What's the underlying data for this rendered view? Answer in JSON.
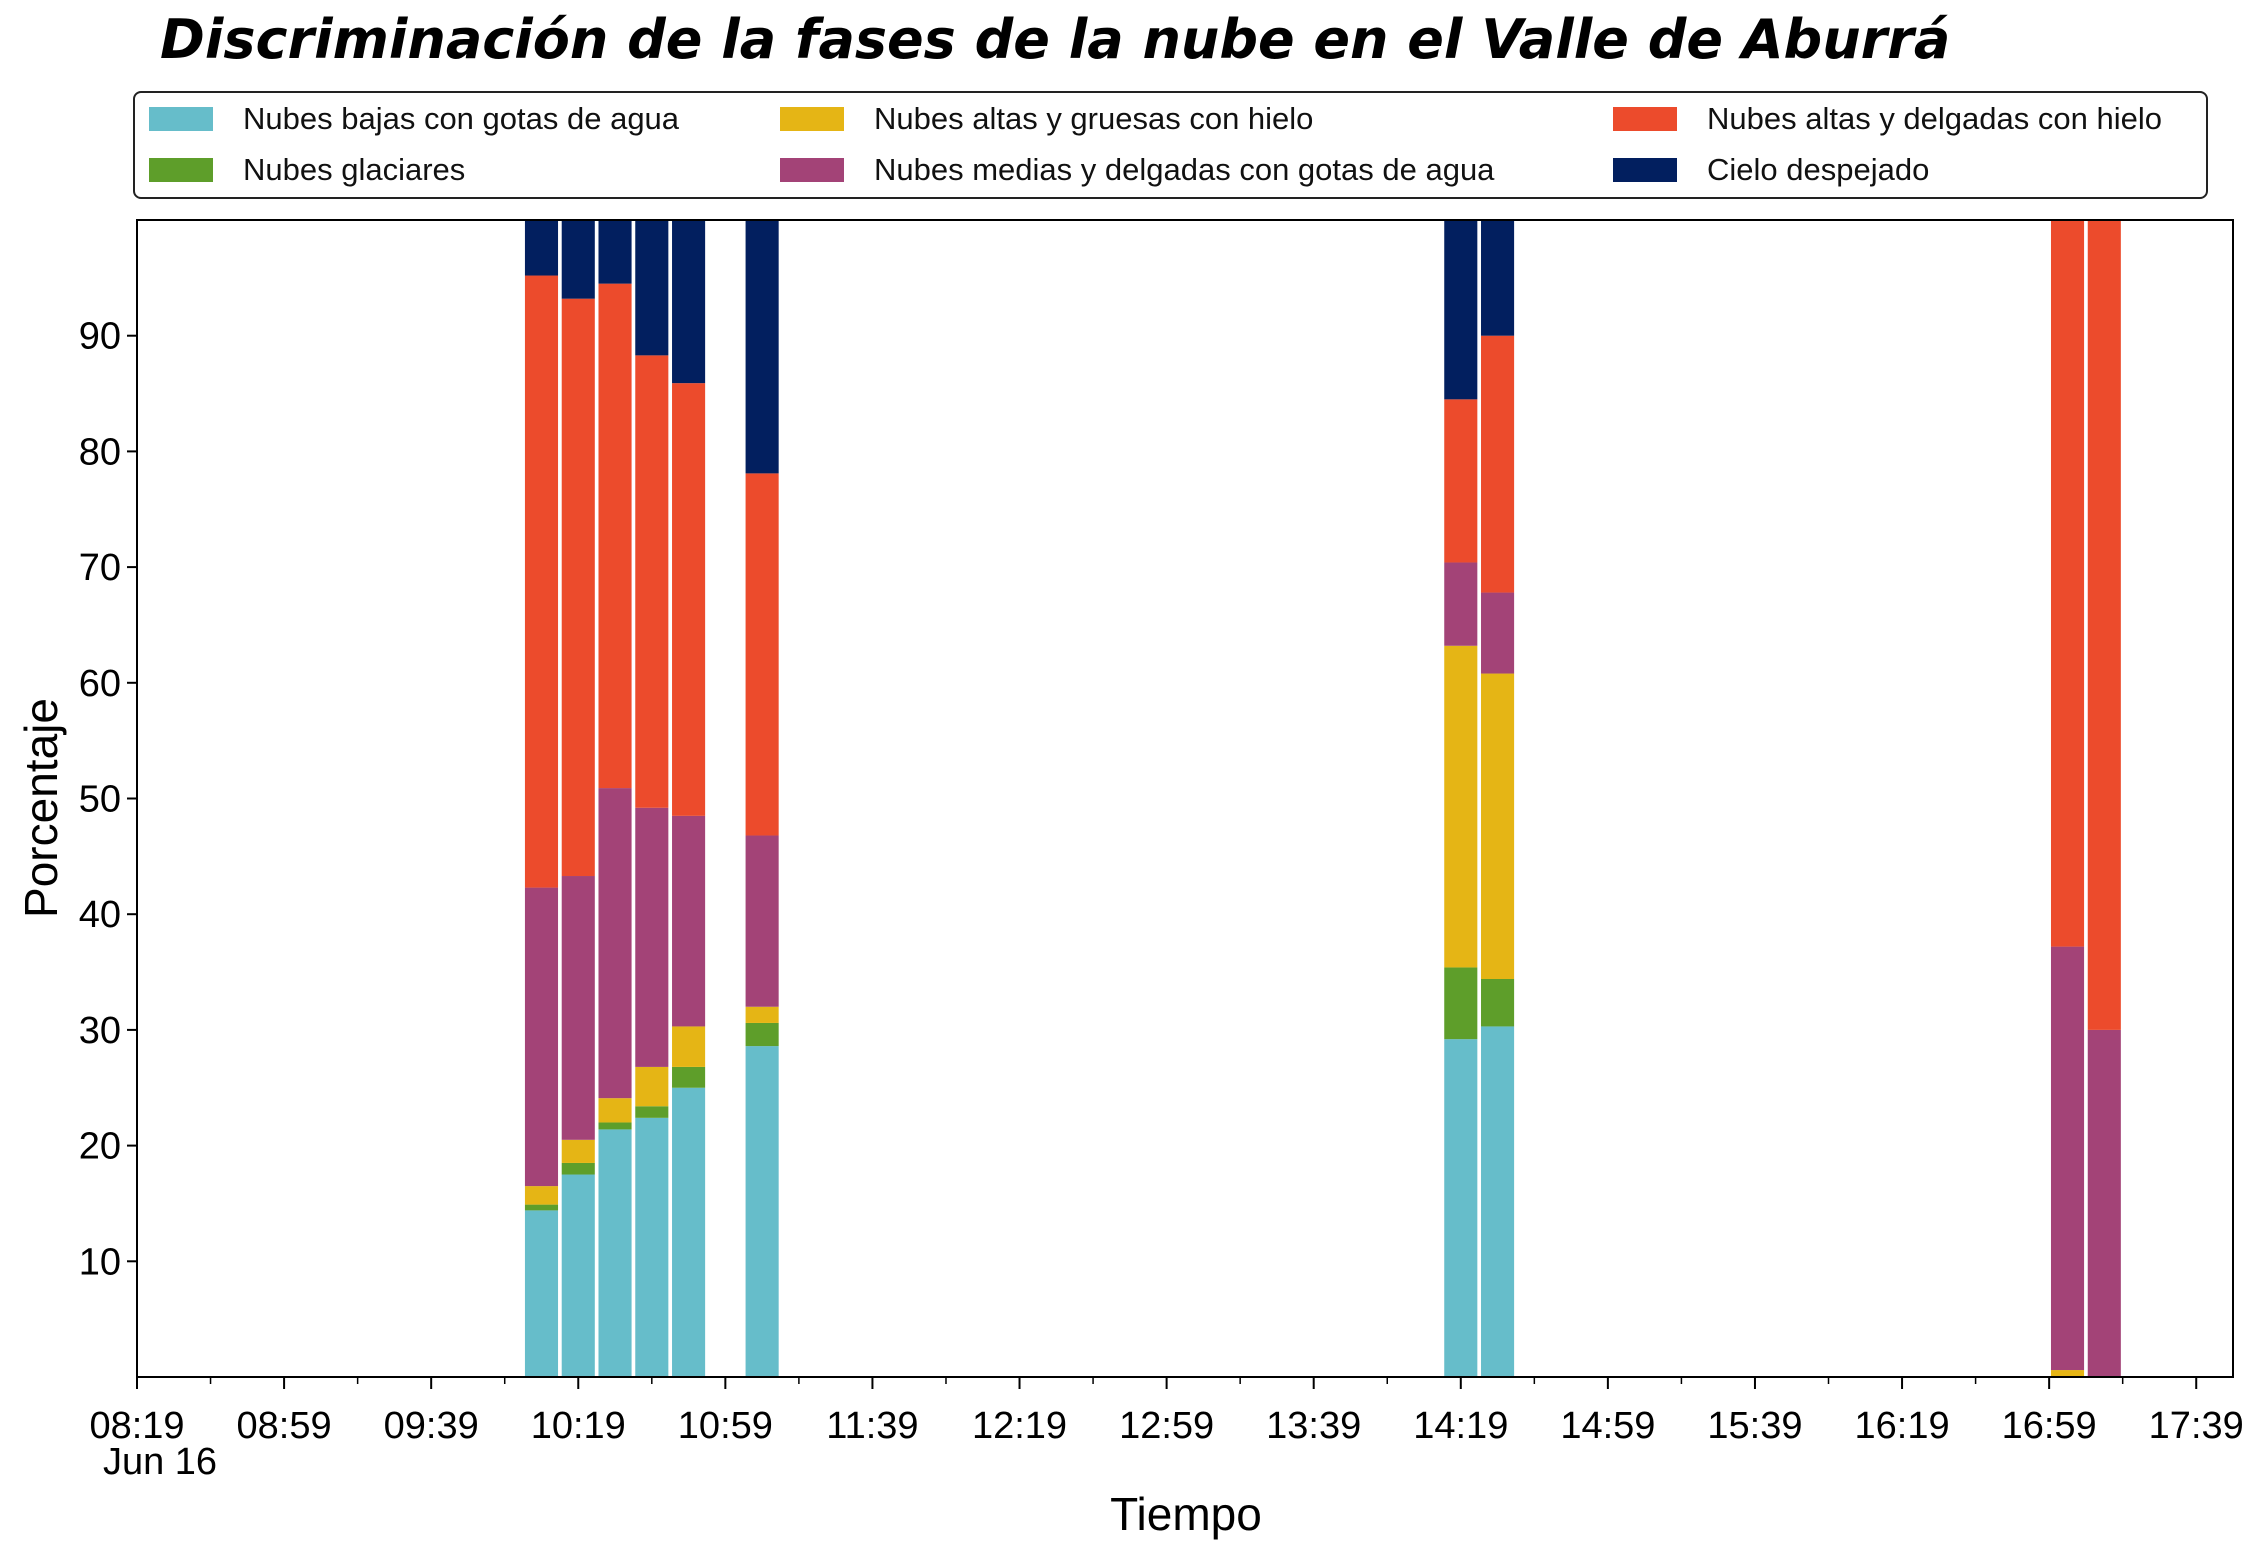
{
  "chart_data": {
    "type": "bar",
    "stacked": true,
    "title": "Discriminación de la fases de la nube en el Valle de Aburrá",
    "xlabel": "Tiempo",
    "ylabel": "Porcentaje",
    "date_label": "Jun 16",
    "ylim": [
      0,
      100
    ],
    "yticks": [
      10,
      20,
      30,
      40,
      50,
      60,
      70,
      80,
      90
    ],
    "xlim": [
      "08:19",
      "17:49"
    ],
    "xticks": [
      "08:19",
      "08:59",
      "09:39",
      "10:19",
      "10:59",
      "11:39",
      "12:19",
      "12:59",
      "13:39",
      "14:19",
      "14:59",
      "15:39",
      "16:19",
      "16:59",
      "17:39"
    ],
    "bar_width_minutes": 9,
    "legend_position": "top",
    "x": [
      "10:09",
      "10:19",
      "10:29",
      "10:39",
      "10:49",
      "11:09",
      "14:19",
      "14:29",
      "17:04",
      "17:14"
    ],
    "series": [
      {
        "name": "Nubes bajas con gotas de agua",
        "color": "#66bdca",
        "values": [
          14.4,
          17.5,
          21.4,
          22.4,
          25.0,
          28.6,
          29.2,
          30.3,
          0,
          0
        ]
      },
      {
        "name": "Nubes glaciares",
        "color": "#5e9e2a",
        "values": [
          0.5,
          1.0,
          0.6,
          1.0,
          1.8,
          2.0,
          6.2,
          4.1,
          0,
          0
        ]
      },
      {
        "name": "Nubes altas y gruesas con hielo",
        "color": "#e5b515",
        "values": [
          1.6,
          2.0,
          2.1,
          3.4,
          3.5,
          1.4,
          27.8,
          26.4,
          0.6,
          0
        ]
      },
      {
        "name": "Nubes medias y delgadas con gotas de agua",
        "color": "#a34377",
        "values": [
          25.8,
          22.8,
          26.8,
          22.4,
          18.2,
          14.8,
          7.2,
          7.0,
          36.6,
          30.0
        ]
      },
      {
        "name": "Nubes altas y delgadas con hielo",
        "color": "#ec4b2c",
        "values": [
          52.9,
          49.9,
          43.6,
          39.1,
          37.4,
          31.3,
          14.1,
          22.2,
          62.8,
          70.0
        ]
      },
      {
        "name": "Cielo despejado",
        "color": "#021f5f",
        "values": [
          4.8,
          6.8,
          5.5,
          11.7,
          14.1,
          21.9,
          15.5,
          10.0,
          0,
          0
        ]
      }
    ]
  }
}
